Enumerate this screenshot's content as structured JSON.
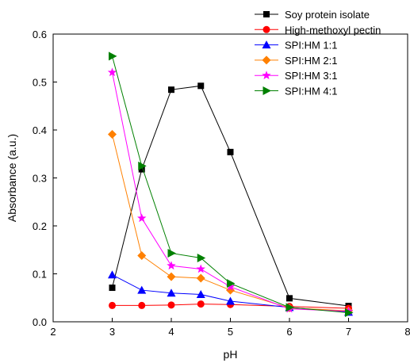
{
  "chart_data": {
    "type": "line",
    "xlabel": "pH",
    "ylabel": "Absorbance (a.u.)",
    "xlim": [
      2,
      8
    ],
    "ylim": [
      0,
      0.6
    ],
    "xticks": [
      "2",
      "3",
      "4",
      "5",
      "6",
      "7",
      "8"
    ],
    "yticks": [
      "0.0",
      "0.1",
      "0.2",
      "0.3",
      "0.4",
      "0.5",
      "0.6"
    ],
    "x": [
      3,
      3.5,
      4,
      4.5,
      5,
      6,
      7
    ],
    "grid": false,
    "legend_position": "top-right",
    "series": [
      {
        "name": "Soy protein isolate",
        "color": "#000000",
        "marker": "square",
        "values": [
          0.071,
          0.318,
          0.484,
          0.492,
          0.354,
          0.049,
          0.033
        ]
      },
      {
        "name": "High-methoxyl pectin",
        "color": "#ff0000",
        "marker": "circle",
        "values": [
          0.034,
          0.034,
          0.035,
          0.037,
          0.036,
          0.032,
          0.028
        ]
      },
      {
        "name": "SPI:HM 1:1",
        "color": "#0000ff",
        "marker": "triangle-up",
        "values": [
          0.098,
          0.066,
          0.06,
          0.057,
          0.043,
          0.03,
          0.02
        ]
      },
      {
        "name": "SPI:HM 2:1",
        "color": "#ff8000",
        "marker": "diamond",
        "values": [
          0.391,
          0.138,
          0.094,
          0.091,
          0.066,
          0.029,
          0.023
        ]
      },
      {
        "name": "SPI:HM 3:1",
        "color": "#ff00ff",
        "marker": "star",
        "values": [
          0.52,
          0.216,
          0.117,
          0.11,
          0.073,
          0.027,
          0.022
        ]
      },
      {
        "name": "SPI:HM 4:1",
        "color": "#008000",
        "marker": "triangle-right",
        "values": [
          0.554,
          0.325,
          0.143,
          0.133,
          0.08,
          0.03,
          0.019
        ]
      }
    ]
  }
}
